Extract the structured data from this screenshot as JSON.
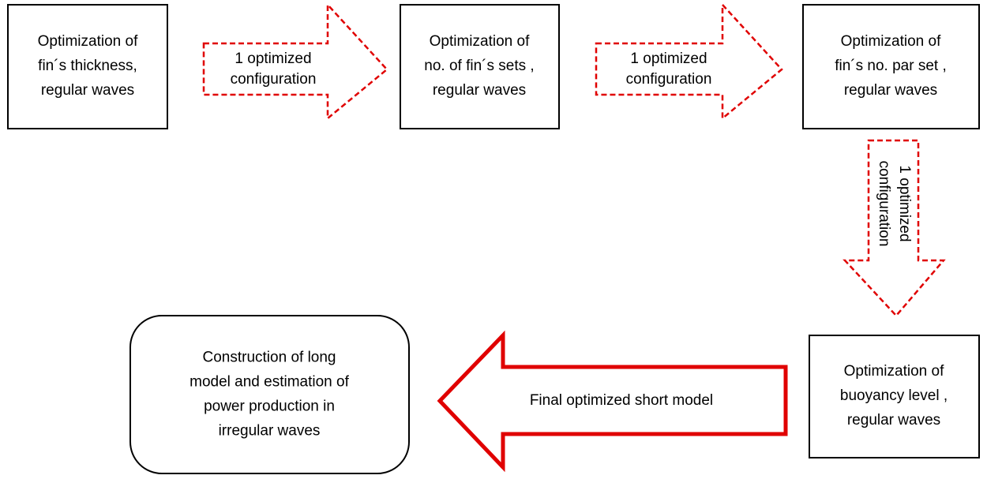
{
  "nodes": [
    {
      "lines": [
        "Optimization of",
        "fin´s thickness,",
        "regular waves"
      ]
    },
    {
      "lines": [
        "Optimization of",
        "no. of fin´s sets ,",
        "regular waves"
      ]
    },
    {
      "lines": [
        "Optimization of",
        "fin´s no. par set ,",
        "regular waves"
      ]
    },
    {
      "lines": [
        "Optimization of",
        "buoyancy level ,",
        "regular waves"
      ]
    },
    {
      "lines": [
        "Construction of long",
        "model and estimation of",
        "power production in",
        "irregular waves"
      ]
    }
  ],
  "arrows": [
    {
      "lines": [
        "1 optimized",
        "configuration"
      ]
    },
    {
      "lines": [
        "1 optimized",
        "configuration"
      ]
    },
    {
      "lines": [
        "1 optimized",
        "configuration"
      ]
    },
    {
      "lines": [
        "Final optimized short model"
      ]
    }
  ]
}
